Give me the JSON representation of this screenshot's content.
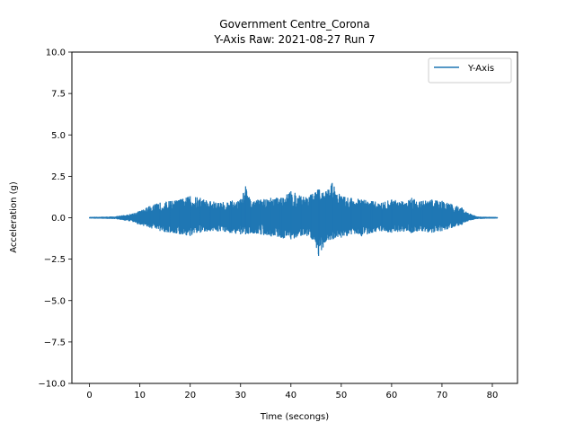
{
  "chart_data": {
    "type": "line",
    "title": "Government Centre_Corona",
    "subtitle": "Y-Axis Raw: 2021-08-27 Run 7",
    "xlabel": "Time (secongs)",
    "ylabel": "Acceleration (g)",
    "xlim": [
      -3.5,
      85
    ],
    "ylim": [
      -10.0,
      10.0
    ],
    "xticks": [
      0,
      10,
      20,
      30,
      40,
      50,
      60,
      70,
      80
    ],
    "xtick_labels": [
      "0",
      "10",
      "20",
      "30",
      "40",
      "50",
      "60",
      "70",
      "80"
    ],
    "yticks": [
      10.0,
      7.5,
      5.0,
      2.5,
      0.0,
      -2.5,
      -5.0,
      -7.5,
      -10.0
    ],
    "ytick_labels": [
      "10.0",
      "7.5",
      "5.0",
      "2.5",
      "0.0",
      "−2.5",
      "−5.0",
      "−7.5",
      "−10.0"
    ],
    "grid": false,
    "legend_position": "top-right",
    "series": [
      {
        "name": "Y-Axis",
        "color": "#1f77b4",
        "x": [
          0,
          5,
          8,
          10,
          12,
          14,
          16,
          18,
          20,
          22,
          24,
          26,
          28,
          30,
          31,
          32,
          34,
          36,
          38,
          40,
          42,
          44,
          45.5,
          47,
          48.2,
          50,
          52,
          54,
          56,
          58,
          60,
          62,
          64,
          66,
          68,
          70,
          72,
          74,
          75,
          77,
          79,
          81
        ],
        "y_max": [
          0.02,
          0.05,
          0.2,
          0.4,
          0.7,
          0.9,
          1.0,
          1.1,
          1.3,
          1.2,
          1.0,
          0.9,
          1.0,
          1.1,
          1.9,
          1.0,
          1.1,
          1.2,
          1.2,
          1.6,
          1.3,
          1.4,
          1.7,
          1.6,
          2.1,
          1.3,
          1.2,
          1.1,
          1.0,
          0.9,
          1.1,
          1.0,
          1.2,
          1.0,
          1.1,
          1.0,
          0.8,
          0.6,
          0.3,
          0.05,
          0.03,
          0.02
        ],
        "y_min": [
          -0.02,
          -0.05,
          -0.2,
          -0.4,
          -0.6,
          -0.8,
          -0.9,
          -1.0,
          -1.1,
          -0.9,
          -0.8,
          -0.8,
          -0.9,
          -1.0,
          -1.0,
          -0.9,
          -1.0,
          -1.1,
          -1.2,
          -1.3,
          -1.1,
          -1.2,
          -2.3,
          -1.4,
          -1.3,
          -1.2,
          -1.0,
          -1.1,
          -0.9,
          -0.8,
          -0.9,
          -0.8,
          -0.9,
          -0.8,
          -0.9,
          -0.8,
          -0.6,
          -0.4,
          -0.2,
          -0.05,
          -0.03,
          -0.02
        ]
      }
    ]
  }
}
